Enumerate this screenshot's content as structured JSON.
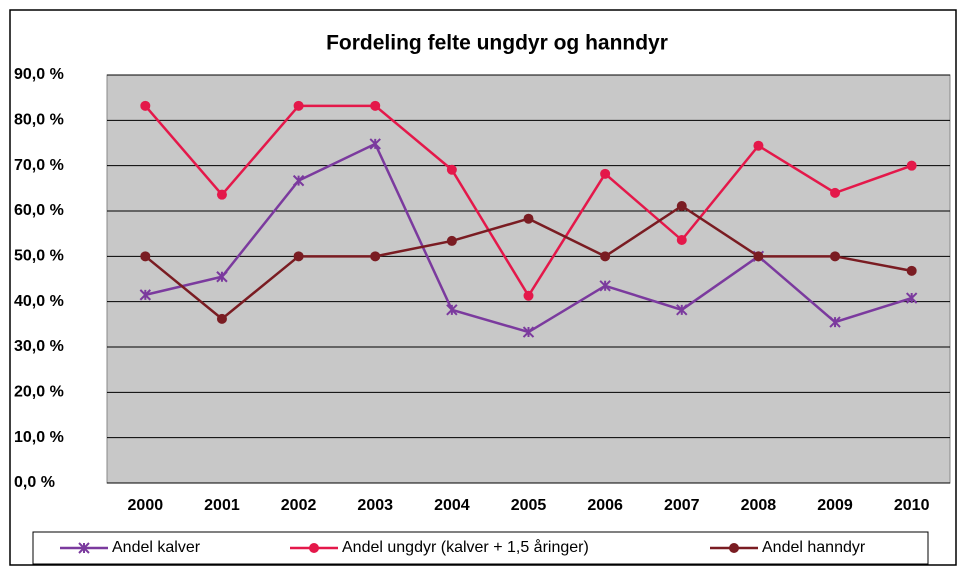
{
  "chart_data": {
    "type": "line",
    "title": "Fordeling felte ungdyr og hanndyr",
    "categories": [
      "2000",
      "2001",
      "2002",
      "2003",
      "2004",
      "2005",
      "2006",
      "2007",
      "2008",
      "2009",
      "2010"
    ],
    "series": [
      {
        "name": "Andel kalver",
        "color": "#7b3a9e",
        "marker": "x",
        "values": [
          41.5,
          45.5,
          66.7,
          74.8,
          38.2,
          33.3,
          43.5,
          38.2,
          50.0,
          35.5,
          40.8
        ]
      },
      {
        "name": "Andel ungdyr (kalver + 1,5 åringer)",
        "color": "#e4184a",
        "marker": "circle",
        "values": [
          83.2,
          63.6,
          83.2,
          83.2,
          69.1,
          41.3,
          68.2,
          53.6,
          74.4,
          64.0,
          70.0
        ]
      },
      {
        "name": "Andel hanndyr",
        "color": "#7a1c22",
        "marker": "circle",
        "values": [
          50.0,
          36.2,
          50.0,
          50.0,
          53.4,
          58.3,
          50.0,
          61.1,
          50.0,
          50.0,
          46.8
        ]
      }
    ],
    "ylim": [
      0,
      90
    ],
    "yticks": [
      {
        "value": 0,
        "label": "0,0 %"
      },
      {
        "value": 10,
        "label": "10,0 %"
      },
      {
        "value": 20,
        "label": "20,0 %"
      },
      {
        "value": 30,
        "label": "30,0 %"
      },
      {
        "value": 40,
        "label": "40,0 %"
      },
      {
        "value": 50,
        "label": "50,0 %"
      },
      {
        "value": 60,
        "label": "60,0 %"
      },
      {
        "value": 70,
        "label": "70,0 %"
      },
      {
        "value": 80,
        "label": "80,0 %"
      },
      {
        "value": 90,
        "label": "90,0 %"
      }
    ],
    "grid": true,
    "legend": "bottom"
  }
}
